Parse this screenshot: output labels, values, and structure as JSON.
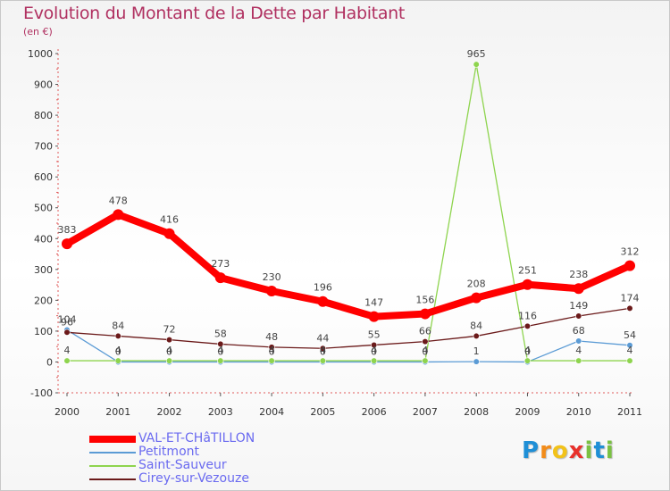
{
  "header": {
    "title": "Evolution du Montant de la Dette par Habitant",
    "subtitle": "(en €)"
  },
  "logo": {
    "letters": [
      "P",
      "r",
      "o",
      "x",
      "i",
      "t",
      "i"
    ],
    "colors": [
      "#1f8fd6",
      "#f28c1a",
      "#f2c21a",
      "#e8312b",
      "#7ac142",
      "#1f8fd6",
      "#7ac142"
    ]
  },
  "chart_data": {
    "type": "line",
    "title": "Evolution du Montant de la Dette par Habitant",
    "x": [
      "2000",
      "2001",
      "2002",
      "2003",
      "2004",
      "2005",
      "2006",
      "2007",
      "2008",
      "2009",
      "2010",
      "2011"
    ],
    "ylim": [
      -100,
      1000
    ],
    "yticks": [
      -100,
      0,
      100,
      200,
      300,
      400,
      500,
      600,
      700,
      800,
      900,
      1000
    ],
    "grid": false,
    "legend_position": "bottom-left",
    "series": [
      {
        "name": "VAL-ET-CHâTILLON",
        "color": "#ff0000",
        "values": [
          383,
          478,
          416,
          273,
          230,
          196,
          147,
          156,
          208,
          251,
          238,
          312
        ],
        "labels": [
          "383",
          "478",
          "416",
          "273",
          "230",
          "196",
          "147",
          "156",
          "208",
          "251",
          "238",
          "312"
        ]
      },
      {
        "name": "Petitmont",
        "color": "#5b9bd5",
        "values": [
          104,
          0,
          0,
          0,
          0,
          0,
          0,
          0,
          1,
          0,
          68,
          54
        ],
        "labels": [
          "104",
          "0",
          "0",
          "0",
          "0",
          "0",
          "0",
          "0",
          "1",
          "0",
          "68",
          "54"
        ]
      },
      {
        "name": "Saint-Sauveur",
        "color": "#8ed44e",
        "values": [
          4,
          4,
          4,
          4,
          4,
          4,
          4,
          4,
          965,
          4,
          4,
          4
        ],
        "labels": [
          "4",
          "4",
          "4",
          "4",
          "4",
          "4",
          "4",
          "4",
          "965",
          "4",
          "4",
          "4"
        ]
      },
      {
        "name": "Cirey-sur-Vezouze",
        "color": "#6b1a1a",
        "values": [
          96,
          84,
          72,
          58,
          48,
          44,
          55,
          66,
          84,
          116,
          149,
          174
        ],
        "labels": [
          "96",
          "84",
          "72",
          "58",
          "48",
          "44",
          "55",
          "66",
          "84",
          "116",
          "149",
          "174"
        ]
      }
    ]
  }
}
